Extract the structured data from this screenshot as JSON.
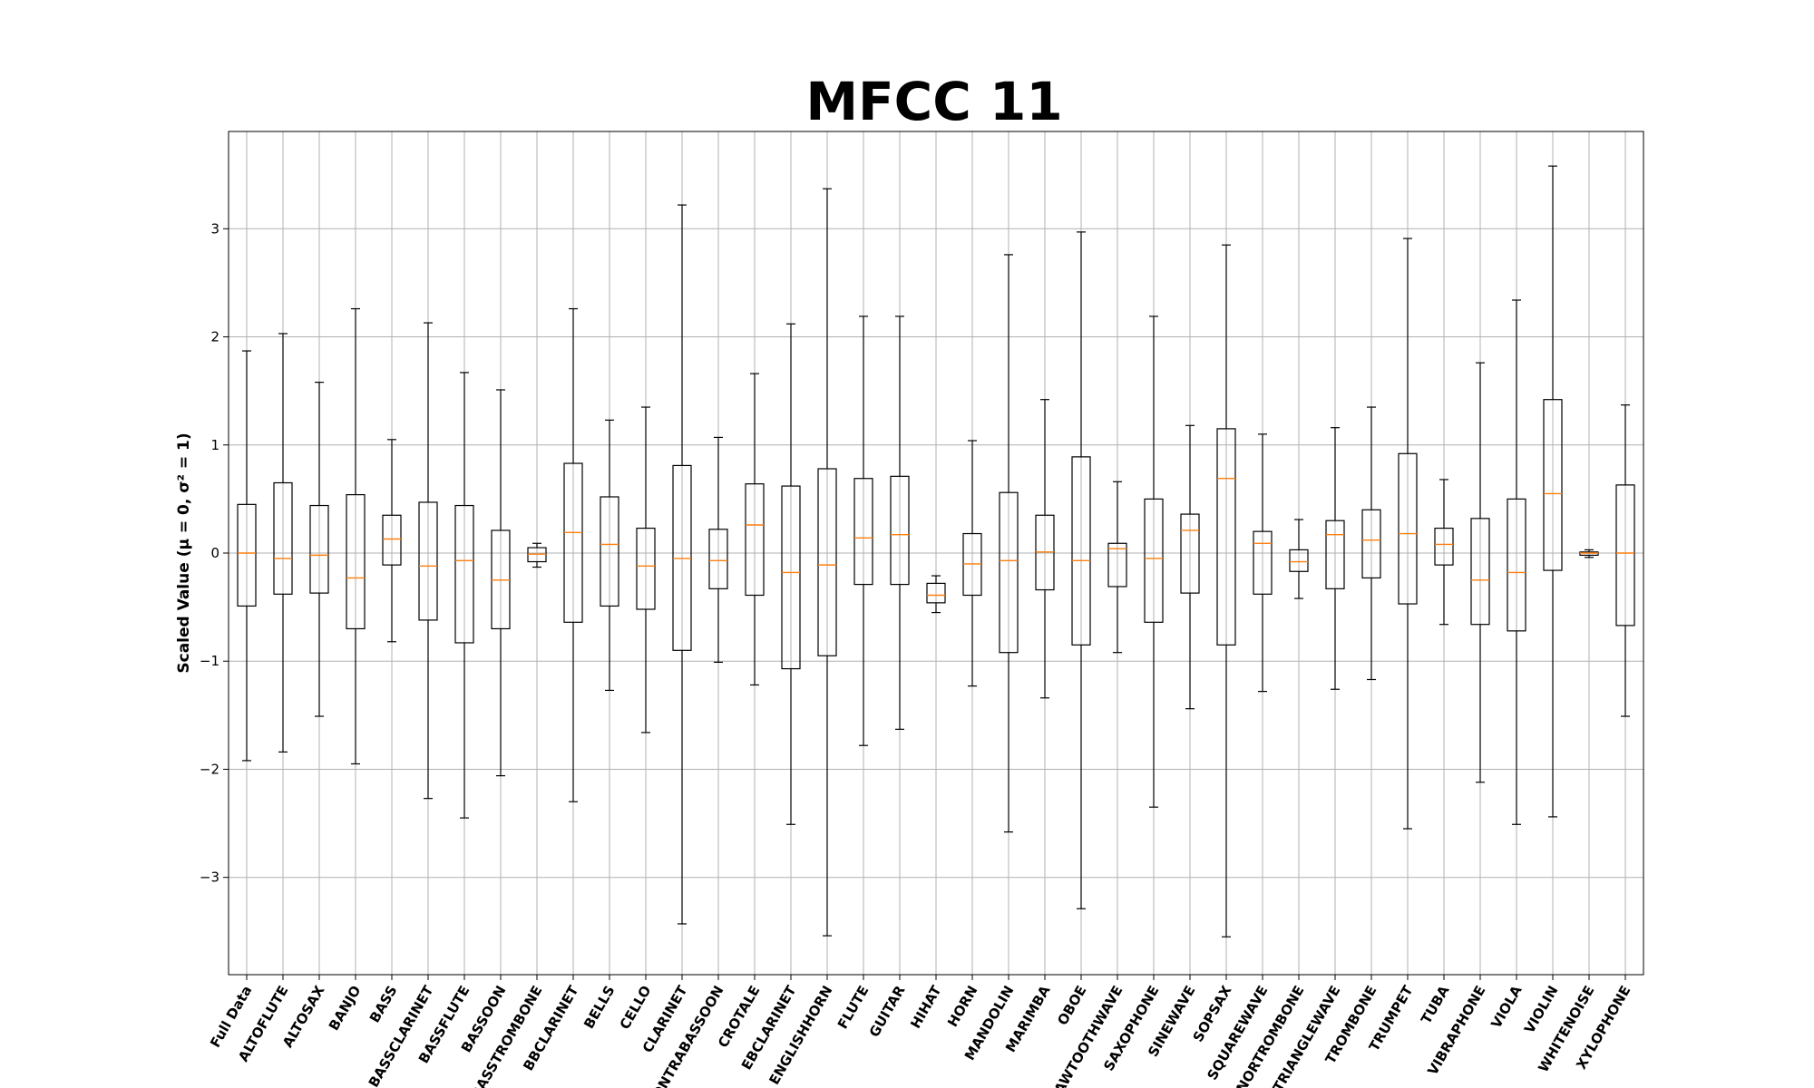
{
  "chart_data": {
    "type": "box",
    "title": "MFCC 11",
    "ylabel": "Scaled Value (μ = 0, σ² = 1)",
    "xlabel": "",
    "ylim": [
      -3.9,
      3.9
    ],
    "yticks": [
      -3,
      -2,
      -1,
      0,
      1,
      2,
      3
    ],
    "grid": true,
    "colors": {
      "box": "#000000",
      "median": "#ff7f0e",
      "grid": "#b0b0b0"
    },
    "categories": [
      "Full Data",
      "ALTOFLUTE",
      "ALTOSAX",
      "BANJO",
      "BASS",
      "BASSCLARINET",
      "BASSFLUTE",
      "BASSOON",
      "BASSTROMBONE",
      "BBCLARINET",
      "BELLS",
      "CELLO",
      "CLARINET",
      "CONTRABASSOON",
      "CROTALE",
      "EBCLARINET",
      "ENGLISHHORN",
      "FLUTE",
      "GUITAR",
      "HIHAT",
      "HORN",
      "MANDOLIN",
      "MARIMBA",
      "OBOE",
      "SAWTOOTHWAVE",
      "SAXOPHONE",
      "SINEWAVE",
      "SOPSAX",
      "SQUAREWAVE",
      "TENORTROMBONE",
      "TRIANGLEWAVE",
      "TROMBONE",
      "TRUMPET",
      "TUBA",
      "VIBRAPHONE",
      "VIOLA",
      "VIOLIN",
      "WHITENOISE",
      "XYLOPHONE"
    ],
    "x_positions": [
      1,
      2,
      3,
      4,
      5,
      6,
      7,
      8,
      9,
      10,
      11,
      12,
      13,
      14,
      15,
      16,
      17,
      18,
      19,
      20,
      21,
      22,
      23,
      24,
      25,
      26,
      27,
      28,
      29,
      30,
      31,
      32,
      33,
      34,
      35,
      36,
      37,
      38,
      39
    ],
    "boxes": [
      {
        "whislo": -1.92,
        "q1": -0.49,
        "med": 0.0,
        "q3": 0.45,
        "whishi": 1.87
      },
      {
        "whislo": -1.84,
        "q1": -0.38,
        "med": -0.05,
        "q3": 0.65,
        "whishi": 2.03
      },
      {
        "whislo": -1.51,
        "q1": -0.37,
        "med": -0.02,
        "q3": 0.44,
        "whishi": 1.58
      },
      {
        "whislo": -1.95,
        "q1": -0.7,
        "med": -0.23,
        "q3": 0.54,
        "whishi": 2.26
      },
      {
        "whislo": -0.82,
        "q1": -0.11,
        "med": 0.13,
        "q3": 0.35,
        "whishi": 1.05
      },
      {
        "whislo": -2.27,
        "q1": -0.62,
        "med": -0.12,
        "q3": 0.47,
        "whishi": 2.13
      },
      {
        "whislo": -2.45,
        "q1": -0.83,
        "med": -0.07,
        "q3": 0.44,
        "whishi": 1.67
      },
      {
        "whislo": -2.06,
        "q1": -0.7,
        "med": -0.25,
        "q3": 0.21,
        "whishi": 1.51
      },
      {
        "whislo": -0.13,
        "q1": -0.08,
        "med": -0.01,
        "q3": 0.05,
        "whishi": 0.09
      },
      {
        "whislo": -2.3,
        "q1": -0.64,
        "med": 0.19,
        "q3": 0.83,
        "whishi": 2.26
      },
      {
        "whislo": -1.27,
        "q1": -0.49,
        "med": 0.08,
        "q3": 0.52,
        "whishi": 1.23
      },
      {
        "whislo": -1.66,
        "q1": -0.52,
        "med": -0.12,
        "q3": 0.23,
        "whishi": 1.35
      },
      {
        "whislo": -3.43,
        "q1": -0.9,
        "med": -0.05,
        "q3": 0.81,
        "whishi": 3.22
      },
      {
        "whislo": -1.01,
        "q1": -0.33,
        "med": -0.07,
        "q3": 0.22,
        "whishi": 1.07
      },
      {
        "whislo": -1.22,
        "q1": -0.39,
        "med": 0.26,
        "q3": 0.64,
        "whishi": 1.66
      },
      {
        "whislo": -2.51,
        "q1": -1.07,
        "med": -0.18,
        "q3": 0.62,
        "whishi": 2.12
      },
      {
        "whislo": -3.54,
        "q1": -0.95,
        "med": -0.11,
        "q3": 0.78,
        "whishi": 3.37
      },
      {
        "whislo": -1.78,
        "q1": -0.29,
        "med": 0.14,
        "q3": 0.69,
        "whishi": 2.19
      },
      {
        "whislo": -1.63,
        "q1": -0.29,
        "med": 0.17,
        "q3": 0.71,
        "whishi": 2.19
      },
      {
        "whislo": -0.55,
        "q1": -0.46,
        "med": -0.39,
        "q3": -0.28,
        "whishi": -0.21
      },
      {
        "whislo": -1.23,
        "q1": -0.39,
        "med": -0.1,
        "q3": 0.18,
        "whishi": 1.04
      },
      {
        "whislo": -2.58,
        "q1": -0.92,
        "med": -0.07,
        "q3": 0.56,
        "whishi": 2.76
      },
      {
        "whislo": -1.34,
        "q1": -0.34,
        "med": 0.01,
        "q3": 0.35,
        "whishi": 1.42
      },
      {
        "whislo": -3.29,
        "q1": -0.85,
        "med": -0.07,
        "q3": 0.89,
        "whishi": 2.97
      },
      {
        "whislo": -0.92,
        "q1": -0.31,
        "med": 0.04,
        "q3": 0.09,
        "whishi": 0.66
      },
      {
        "whislo": -2.35,
        "q1": -0.64,
        "med": -0.05,
        "q3": 0.5,
        "whishi": 2.19
      },
      {
        "whislo": -1.44,
        "q1": -0.37,
        "med": 0.21,
        "q3": 0.36,
        "whishi": 1.18
      },
      {
        "whislo": -3.55,
        "q1": -0.85,
        "med": 0.69,
        "q3": 1.15,
        "whishi": 2.85
      },
      {
        "whislo": -1.28,
        "q1": -0.38,
        "med": 0.09,
        "q3": 0.2,
        "whishi": 1.1
      },
      {
        "whislo": -0.42,
        "q1": -0.17,
        "med": -0.08,
        "q3": 0.03,
        "whishi": 0.31
      },
      {
        "whislo": -1.26,
        "q1": -0.33,
        "med": 0.17,
        "q3": 0.3,
        "whishi": 1.16
      },
      {
        "whislo": -1.17,
        "q1": -0.23,
        "med": 0.12,
        "q3": 0.4,
        "whishi": 1.35
      },
      {
        "whislo": -2.55,
        "q1": -0.47,
        "med": 0.18,
        "q3": 0.92,
        "whishi": 2.91
      },
      {
        "whislo": -0.66,
        "q1": -0.11,
        "med": 0.08,
        "q3": 0.23,
        "whishi": 0.68
      },
      {
        "whislo": -2.12,
        "q1": -0.66,
        "med": -0.25,
        "q3": 0.32,
        "whishi": 1.76
      },
      {
        "whislo": -2.51,
        "q1": -0.72,
        "med": -0.18,
        "q3": 0.5,
        "whishi": 2.34
      },
      {
        "whislo": -2.44,
        "q1": -0.16,
        "med": 0.55,
        "q3": 1.42,
        "whishi": 3.58
      },
      {
        "whislo": -0.04,
        "q1": -0.02,
        "med": 0.0,
        "q3": 0.01,
        "whishi": 0.03
      },
      {
        "whislo": -1.51,
        "q1": -0.67,
        "med": 0.0,
        "q3": 0.63,
        "whishi": 1.37
      }
    ]
  }
}
